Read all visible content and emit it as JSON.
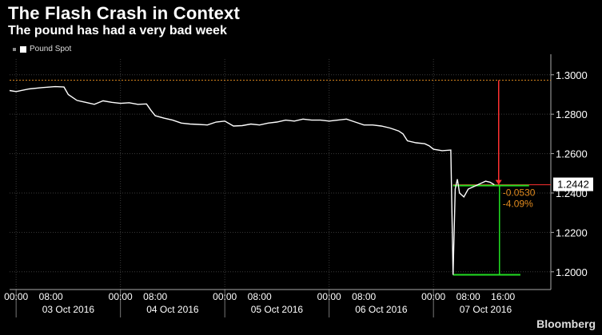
{
  "header": {
    "title": "The Flash Crash in Context",
    "subtitle": "The pound has had a very bad week"
  },
  "legend": {
    "label": "Pound Spot"
  },
  "brand": "Bloomberg",
  "colors": {
    "series": "#ffffff",
    "reference": "#e08a1e",
    "drop": "#ff3030",
    "recovery": "#22dd22"
  },
  "chart_data": {
    "type": "line",
    "title": "The Flash Crash in Context",
    "subtitle": "The pound has had a very bad week",
    "ylim": [
      1.191,
      1.308
    ],
    "yticks": [
      1.2,
      1.22,
      1.24,
      1.26,
      1.28,
      1.3
    ],
    "ytick_labels": [
      "1.2000",
      "1.2200",
      "1.2400",
      "1.2600",
      "1.2800",
      "1.3000"
    ],
    "x_unit": "hours from 03 Oct 2016 00:00",
    "xlim": [
      -1.5,
      123
    ],
    "xticks": [
      0,
      8,
      24,
      32,
      48,
      56,
      72,
      80,
      96,
      104,
      112
    ],
    "xtick_labels": [
      "00:00",
      "08:00",
      "00:00",
      "08:00",
      "00:00",
      "08:00",
      "00:00",
      "08:00",
      "00:00",
      "08:00",
      "16:00"
    ],
    "date_labels": [
      {
        "x": 12,
        "label": "03 Oct 2016"
      },
      {
        "x": 36,
        "label": "04 Oct 2016"
      },
      {
        "x": 60,
        "label": "05 Oct 2016"
      },
      {
        "x": 84,
        "label": "06 Oct 2016"
      },
      {
        "x": 108,
        "label": "07 Oct 2016"
      }
    ],
    "grid": true,
    "series": [
      {
        "name": "Pound Spot",
        "points": [
          [
            -1.5,
            1.292
          ],
          [
            0,
            1.2915
          ],
          [
            3,
            1.2928
          ],
          [
            6,
            1.2935
          ],
          [
            9,
            1.294
          ],
          [
            11,
            1.2938
          ],
          [
            12,
            1.29
          ],
          [
            14,
            1.287
          ],
          [
            16,
            1.286
          ],
          [
            18,
            1.285
          ],
          [
            20,
            1.2868
          ],
          [
            22,
            1.286
          ],
          [
            24,
            1.2855
          ],
          [
            26,
            1.2858
          ],
          [
            28,
            1.285
          ],
          [
            30,
            1.2852
          ],
          [
            31,
            1.282
          ],
          [
            32,
            1.2792
          ],
          [
            34,
            1.278
          ],
          [
            36,
            1.277
          ],
          [
            38,
            1.2755
          ],
          [
            40,
            1.275
          ],
          [
            42,
            1.2748
          ],
          [
            44,
            1.2745
          ],
          [
            46,
            1.276
          ],
          [
            48,
            1.2765
          ],
          [
            50,
            1.274
          ],
          [
            52,
            1.2742
          ],
          [
            54,
            1.275
          ],
          [
            56,
            1.2745
          ],
          [
            58,
            1.2755
          ],
          [
            60,
            1.276
          ],
          [
            62,
            1.277
          ],
          [
            64,
            1.2765
          ],
          [
            66,
            1.2775
          ],
          [
            68,
            1.277
          ],
          [
            70,
            1.277
          ],
          [
            72,
            1.2765
          ],
          [
            74,
            1.277
          ],
          [
            76,
            1.2775
          ],
          [
            78,
            1.276
          ],
          [
            80,
            1.2745
          ],
          [
            82,
            1.2745
          ],
          [
            84,
            1.274
          ],
          [
            86,
            1.273
          ],
          [
            88,
            1.2715
          ],
          [
            89,
            1.27
          ],
          [
            90,
            1.2665
          ],
          [
            92,
            1.2655
          ],
          [
            94,
            1.265
          ],
          [
            95,
            1.264
          ],
          [
            96,
            1.2622
          ],
          [
            98,
            1.2615
          ],
          [
            100,
            1.2618
          ],
          [
            100.5,
            1.1985
          ],
          [
            101,
            1.242
          ],
          [
            101.5,
            1.247
          ],
          [
            102,
            1.24
          ],
          [
            103,
            1.238
          ],
          [
            104,
            1.242
          ],
          [
            105,
            1.243
          ],
          [
            106,
            1.244
          ],
          [
            107,
            1.245
          ],
          [
            108,
            1.246
          ],
          [
            109,
            1.2455
          ],
          [
            110,
            1.2442
          ]
        ]
      }
    ],
    "annotations": {
      "reference_level": 1.2972,
      "last_value": 1.2442,
      "last_value_label": "1.2442",
      "change": "-0.0530",
      "change_pct": "-4.09%",
      "drop": {
        "x": 111,
        "from": 1.2972,
        "to": 1.2442
      },
      "recovery": {
        "x": 111,
        "from": 1.1985,
        "to": 1.2442
      },
      "low": {
        "x_from": 100.5,
        "x_to": 116,
        "value": 1.1985
      },
      "current": {
        "x_from": 100.5,
        "x_to": 118,
        "value": 1.2442
      }
    }
  }
}
